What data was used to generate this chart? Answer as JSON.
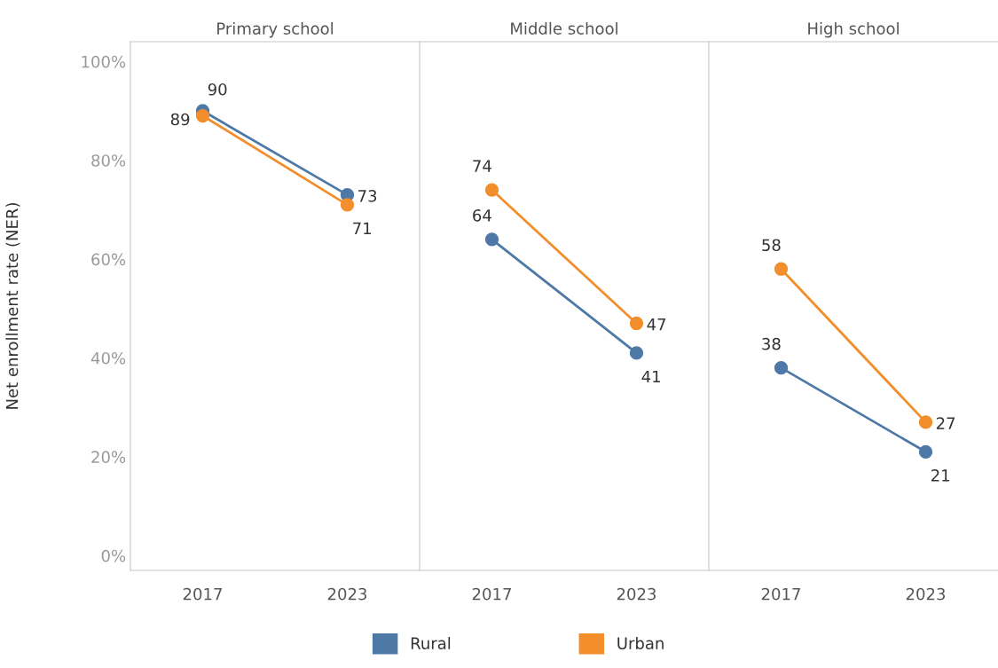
{
  "chart_data": [
    {
      "type": "line",
      "title": "Primary school",
      "ylabel": "Net enrollment rate (NER)",
      "categories": [
        "2017",
        "2023"
      ],
      "ylim": [
        -3,
        104
      ],
      "yticks": [
        {
          "value": 0,
          "label": "0%"
        },
        {
          "value": 20,
          "label": "20%"
        },
        {
          "value": 40,
          "label": "40%"
        },
        {
          "value": 60,
          "label": "60%"
        },
        {
          "value": 80,
          "label": "80%"
        },
        {
          "value": 100,
          "label": "100%"
        }
      ],
      "marker": "circle",
      "data_labels": true,
      "grid": false,
      "legend": "bottom",
      "series": [
        {
          "name": "Rural",
          "color": "#4e79a7",
          "values": [
            90,
            73
          ]
        },
        {
          "name": "Urban",
          "color": "#f28e2b",
          "values": [
            89,
            71
          ]
        }
      ]
    },
    {
      "type": "line",
      "title": "Middle school",
      "categories": [
        "2017",
        "2023"
      ],
      "ylim": [
        -3,
        104
      ],
      "tick_labels": "x",
      "marker": "circle",
      "data_labels": true,
      "grid": false,
      "series": [
        {
          "color": "#4e79a7",
          "values": [
            64,
            41
          ]
        },
        {
          "color": "#f28e2b",
          "values": [
            74,
            47
          ]
        }
      ]
    },
    {
      "type": "line",
      "title": "High school",
      "categories": [
        "2017",
        "2023"
      ],
      "ylim": [
        -3,
        104
      ],
      "tick_labels": "x",
      "marker": "circle",
      "data_labels": true,
      "grid": false,
      "series": [
        {
          "color": "#4e79a7",
          "values": [
            38,
            21
          ]
        },
        {
          "color": "#f28e2b",
          "values": [
            58,
            27
          ]
        }
      ]
    }
  ]
}
